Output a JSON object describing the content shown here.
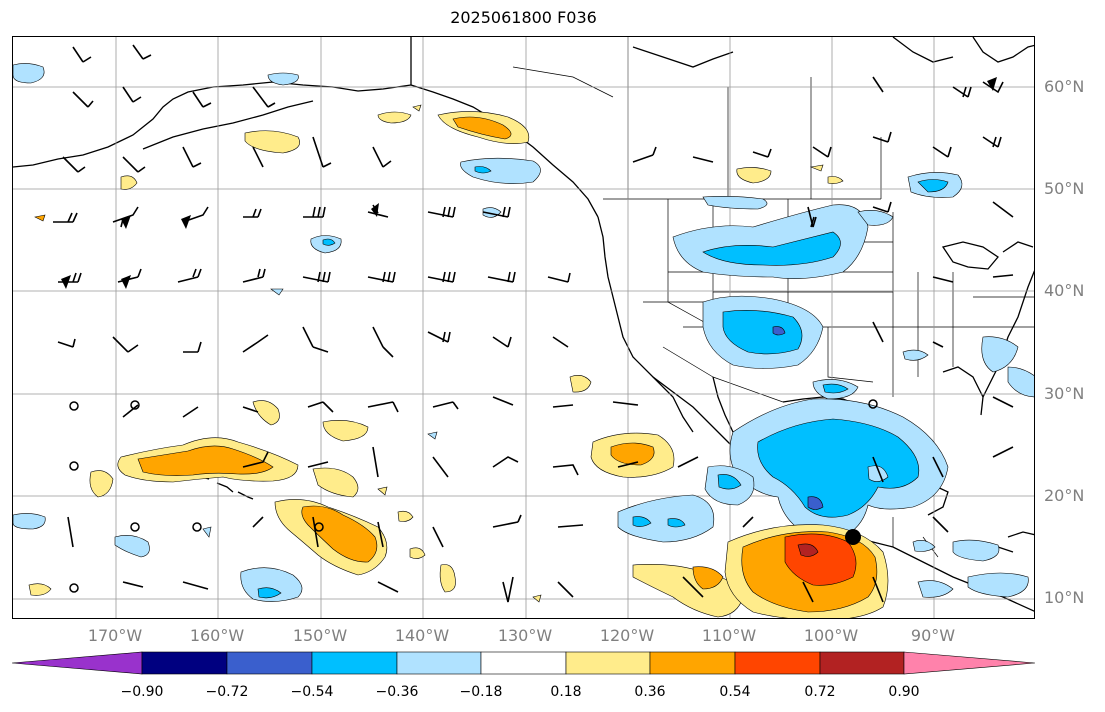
{
  "title": "2025061800 F036",
  "lat_labels": [
    "60°N",
    "50°N",
    "40°N",
    "30°N",
    "20°N",
    "10°N"
  ],
  "lon_labels": [
    "170°W",
    "160°W",
    "150°W",
    "140°W",
    "130°W",
    "120°W",
    "110°W",
    "100°W",
    "90°W"
  ],
  "colorbar": {
    "ticks": [
      "−0.90",
      "−0.72",
      "−0.54",
      "−0.36",
      "−0.18",
      "0.18",
      "0.36",
      "0.54",
      "0.72",
      "0.90"
    ],
    "colors": [
      "#9932cc",
      "#000080",
      "#3a5fcd",
      "#00bfff",
      "#b0e2ff",
      "#ffffff",
      "#ffec8b",
      "#ffa500",
      "#ff4500",
      "#b22222",
      "#ff82ab"
    ]
  },
  "colors": {
    "pos1": "#ffec8b",
    "pos2": "#ffa500",
    "pos3": "#ff4500",
    "pos4": "#b22222",
    "neg1": "#b0e2ff",
    "neg2": "#00bfff",
    "neg3": "#3a5fcd"
  }
}
